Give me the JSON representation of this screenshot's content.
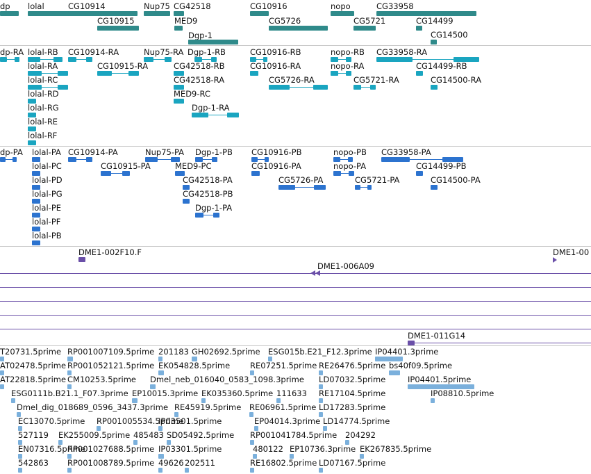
{
  "colors": {
    "gene": "#2f8a8a",
    "transcript_rna": "#1aa5c0",
    "transcript_protein": "#2c73cf",
    "clone": "#6a4fa8",
    "est": "#7bb0dc",
    "divider": "#c8c8c8"
  },
  "tracks": {
    "genes": [
      "dp",
      "lolal",
      "CG10914",
      "Nup75",
      "CG42518",
      "CG10916",
      "nopo",
      "CG33958",
      "CG10915",
      "MED9",
      "CG5726",
      "CG5721",
      "CG14499",
      "Dgp-1",
      "CG14500"
    ],
    "transcripts": [
      "dp-RA",
      "lolal-RB",
      "CG10914-RA",
      "Nup75-RA",
      "Dgp-1-RB",
      "CG10916-RB",
      "nopo-RB",
      "CG33958-RA",
      "lolal-RA",
      "CG10915-RA",
      "CG42518-RB",
      "CG10916-RA",
      "nopo-RA",
      "CG14499-RB",
      "lolal-RC",
      "CG42518-RA",
      "CG5726-RA",
      "CG5721-RA",
      "CG14500-RA",
      "lolal-RD",
      "MED9-RC",
      "lolal-RG",
      "Dgp-1-RA",
      "lolal-RE",
      "lolal-RF"
    ],
    "proteins": [
      "dp-PA",
      "lolal-PA",
      "CG10914-PA",
      "Nup75-PA",
      "Dgp-1-PB",
      "CG10916-PB",
      "nopo-PB",
      "CG33958-PA",
      "lolal-PC",
      "CG10915-PA",
      "MED9-PC",
      "CG10916-PA",
      "nopo-PA",
      "CG14499-PB",
      "lolal-PD",
      "CG42518-PA",
      "CG5726-PA",
      "CG5721-PA",
      "CG14500-PA",
      "lolal-PG",
      "CG42518-PB",
      "lolal-PE",
      "Dgp-1-PA",
      "lolal-PF",
      "lolal-PB"
    ],
    "clones": [
      "DME1-002F10.F",
      "DME1-00",
      "DME1-006A09",
      "DME1-011G14"
    ],
    "ests": [
      "T20731.5prime",
      "RP001007109.5prime",
      "201183",
      "GH02692.5prime",
      "ESG015b.E21_F12.3prime",
      "IP04401.3prime",
      "AT02478.5prime",
      "RP001052121.5prime",
      "EK054828.5prime",
      "RE07251.5prime",
      "RE26476.5prime",
      "bs40f09.5prime",
      "AT22818.5prime",
      "CM10253.5prime",
      "Dmel_neb_016040_0583_1098.3prime",
      "LD07032.5prime",
      "IP04401.5prime",
      "ESG0111b.B21.1_F07.3prime",
      "EP10015.3prime",
      "EK035360.5prime",
      "111633",
      "RE17104.5prime",
      "IP08810.5prime",
      "Dmel_dig_018689_0596_3437.3prime",
      "RE45919.5prime",
      "RE06961.5prime",
      "LD17283.5prime",
      "EC13070.5prime",
      "RP001005534.5prime",
      "IP03501.5prime",
      "EP04014.3prime",
      "LD14774.5prime",
      "527119",
      "EK255009.5prime",
      "485483",
      "SD05492.5prime",
      "RP001041784.5prime",
      "204292",
      "EN07316.5prime",
      "RP001027688.5prime",
      "IP03301.5prime",
      "480122",
      "EP10736.3prime",
      "EK267835.5prime",
      "542863",
      "RP001008789.5prime",
      "49626",
      "202511",
      "RE16802.5prime",
      "LD07167.5prime"
    ]
  }
}
